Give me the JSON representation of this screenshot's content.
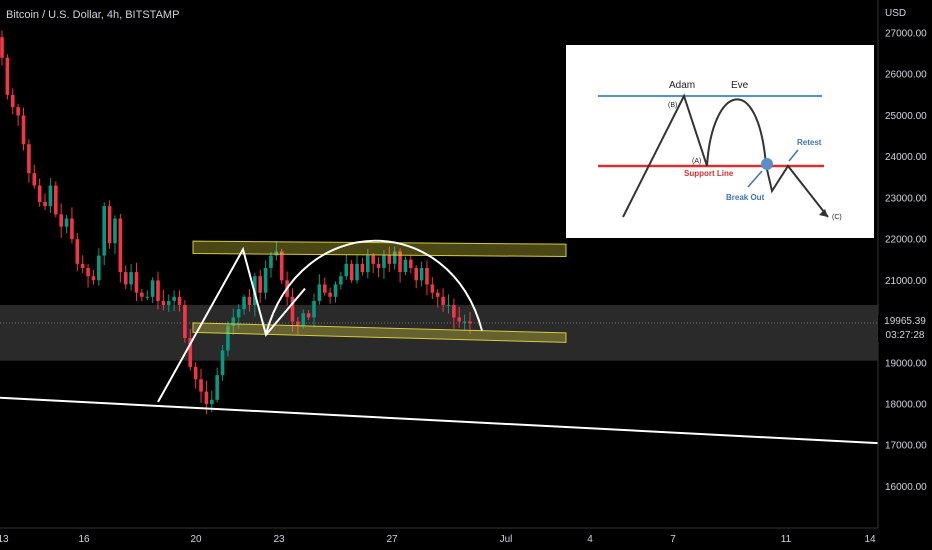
{
  "header": {
    "title": "Bitcoin / U.S. Dollar, 4h, BITSTAMP"
  },
  "price_axis": {
    "currency": "USD",
    "last_price": "19965.39",
    "countdown": "03:27:28"
  },
  "colors": {
    "up": "#089981",
    "down": "#f23645",
    "support": "#d4cb3c",
    "zone": "#2a2a2a"
  },
  "chart_data": {
    "type": "candlestick",
    "title": "Bitcoin / U.S. Dollar, 4h, BITSTAMP",
    "ylabel": "USD",
    "ylim": [
      15300,
      27800
    ],
    "y_ticks": [
      27000,
      26000,
      25000,
      24000,
      23000,
      22000,
      21000,
      20000,
      19000,
      18000,
      17000,
      16000
    ],
    "y_tick_labels": [
      "27000.00",
      "26000.00",
      "25000.00",
      "24000.00",
      "23000.00",
      "22000.00",
      "21000.00",
      "",
      "19000.00",
      "18000.00",
      "17000.00",
      "16000.00"
    ],
    "x_ticks": [
      "13",
      "16",
      "20",
      "23",
      "27",
      "Jul",
      "4",
      "7",
      "11",
      "14"
    ],
    "candles_anchor_close": [
      26400,
      25500,
      25200,
      25000,
      24300,
      23600,
      23300,
      22900,
      22800,
      23300,
      22600,
      22300,
      22500,
      22000,
      21400,
      21300,
      21100,
      21000,
      21600,
      22800,
      21900,
      22500,
      21200,
      20900,
      21200,
      20700,
      20600,
      20600,
      21000,
      20500,
      20400,
      20500,
      20600,
      20400,
      19600,
      18900,
      18600,
      18300,
      18000,
      18100,
      18700,
      19300,
      19900,
      20100,
      20300,
      20600,
      20400,
      21100,
      20700,
      21300,
      21600,
      21700,
      21000,
      20600,
      20000,
      19900,
      20200,
      20100,
      20500,
      20900,
      20700,
      20600,
      20900,
      21100,
      21400,
      21000,
      21400,
      21200,
      21600,
      21400,
      21300,
      21600,
      21400,
      21700,
      21200,
      21500,
      21300,
      21000,
      21300,
      20900,
      20700,
      20600,
      20400,
      20400,
      20100,
      20000,
      20000,
      19960
    ],
    "zones": {
      "resistance": [
        21650,
        21950
      ],
      "support_band": [
        19640,
        19870
      ],
      "gray_zone": [
        19050,
        20400
      ]
    },
    "trendline": {
      "from": [
        0,
        18150
      ],
      "to": [
        932,
        17050
      ]
    },
    "inset": {
      "labels": [
        "Adam",
        "Eve",
        "(B)",
        "(A)",
        "Support Line",
        "Retest",
        "Break Out",
        "(C)"
      ]
    }
  }
}
